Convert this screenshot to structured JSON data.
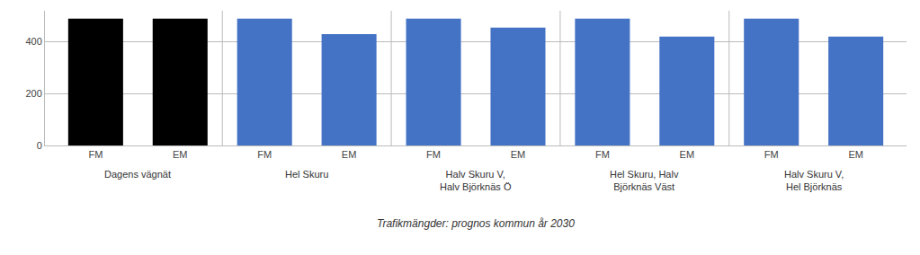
{
  "chart_data": {
    "type": "bar",
    "categories": [
      "FM",
      "EM",
      "FM",
      "EM",
      "FM",
      "EM",
      "FM",
      "EM",
      "FM",
      "EM"
    ],
    "values": [
      490,
      490,
      490,
      430,
      490,
      455,
      490,
      420,
      490,
      420
    ],
    "colors": [
      "#000000",
      "#000000",
      "#4472C4",
      "#4472C4",
      "#4472C4",
      "#4472C4",
      "#4472C4",
      "#4472C4",
      "#4472C4",
      "#4472C4"
    ],
    "group_labels": [
      "Dagens vägnät",
      "Hel Skuru",
      "Halv Skuru V,\nHalv Björknäs Ö",
      "Hel Skuru, Halv\nBjörknäs Väst",
      "Halv Skuru V,\nHel Björknäs"
    ],
    "xlabel": "Trafikmängder: prognos kommun år 2030",
    "ylim": [
      0,
      520
    ],
    "yticks": [
      0,
      200,
      400
    ],
    "grid": true
  }
}
